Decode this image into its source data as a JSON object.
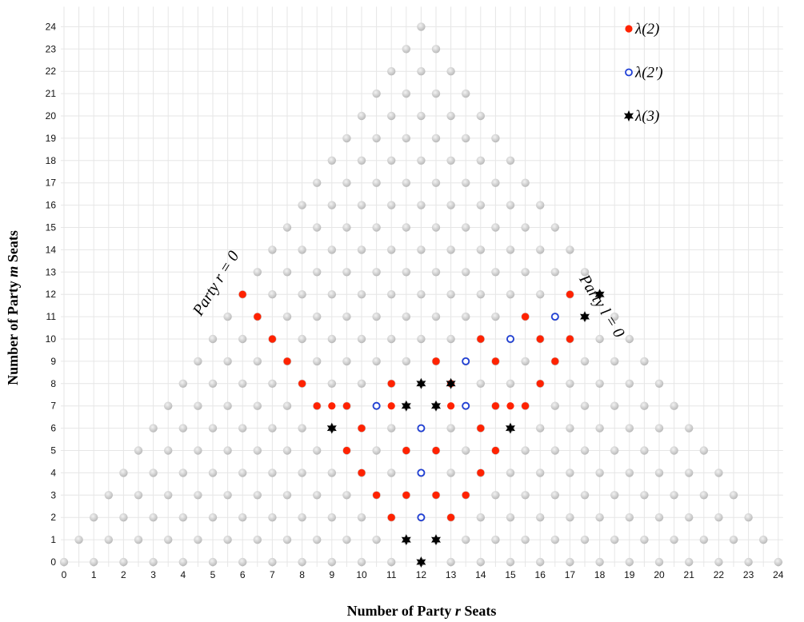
{
  "chart_data": {
    "type": "scatter",
    "xlabel": "Number of Party r Seats",
    "ylabel": "Number of Party m Seats",
    "xlabel_parts": [
      "Number of Party ",
      "r",
      " Seats"
    ],
    "ylabel_parts": [
      "Number of Party ",
      "m",
      " Seats"
    ],
    "xlim": [
      0,
      24
    ],
    "ylim": [
      0,
      24
    ],
    "x_ticks": [
      0,
      1,
      2,
      3,
      4,
      5,
      6,
      7,
      8,
      9,
      10,
      11,
      12,
      13,
      14,
      15,
      16,
      17,
      18,
      19,
      20,
      21,
      22,
      23,
      24
    ],
    "y_ticks": [
      0,
      1,
      2,
      3,
      4,
      5,
      6,
      7,
      8,
      9,
      10,
      11,
      12,
      13,
      14,
      15,
      16,
      17,
      18,
      19,
      20,
      21,
      22,
      23,
      24
    ],
    "grid": true,
    "legend_position": "top-right",
    "background": {
      "description_rule": "all points with integer m from 0 to 24 and x = r + m/2 for integer r >= 0, r + m <= 24",
      "color": "#cccccc"
    },
    "series": [
      {
        "name": "λ(2)",
        "marker": "filled-circle",
        "color": "#ff2200",
        "points": [
          [
            12,
            2
          ],
          [
            13,
            2
          ],
          [
            11,
            2
          ],
          [
            10.5,
            3
          ],
          [
            13.5,
            3
          ],
          [
            11.5,
            3
          ],
          [
            12.5,
            3
          ],
          [
            10,
            4
          ],
          [
            14,
            4
          ],
          [
            9.5,
            5
          ],
          [
            14.5,
            5
          ],
          [
            11.5,
            5
          ],
          [
            12.5,
            5
          ],
          [
            10,
            6
          ],
          [
            14,
            6
          ],
          [
            9,
            7
          ],
          [
            15,
            7
          ],
          [
            11,
            8
          ],
          [
            13,
            8
          ],
          [
            8.5,
            7
          ],
          [
            15.5,
            7
          ],
          [
            8,
            8
          ],
          [
            16,
            8
          ],
          [
            7.5,
            9
          ],
          [
            16.5,
            9
          ],
          [
            7,
            10
          ],
          [
            17,
            10
          ],
          [
            6.5,
            11
          ],
          [
            15.5,
            11
          ],
          [
            6,
            12
          ],
          [
            17,
            12
          ],
          [
            12.5,
            9
          ],
          [
            14.5,
            9
          ],
          [
            14,
            10
          ],
          [
            16,
            10
          ],
          [
            14.5,
            7
          ],
          [
            13,
            7
          ],
          [
            11,
            7
          ],
          [
            9.5,
            7
          ],
          [
            12.5,
            9
          ]
        ]
      },
      {
        "name": "λ(2′)",
        "marker": "open-circle",
        "color": "#1f3fd6",
        "points": [
          [
            12,
            2
          ],
          [
            12,
            4
          ],
          [
            12,
            6
          ],
          [
            10.5,
            7
          ],
          [
            13.5,
            7
          ],
          [
            13.5,
            9
          ],
          [
            15,
            10
          ],
          [
            16.5,
            11
          ]
        ]
      },
      {
        "name": "λ(3)",
        "marker": "star",
        "color": "#000000",
        "points": [
          [
            12,
            0
          ],
          [
            11.5,
            1
          ],
          [
            12.5,
            1
          ],
          [
            9,
            6
          ],
          [
            15,
            6
          ],
          [
            11.5,
            7
          ],
          [
            12.5,
            7
          ],
          [
            12,
            8
          ],
          [
            13,
            8
          ],
          [
            17.5,
            11
          ],
          [
            18,
            12
          ]
        ]
      }
    ],
    "annotations": [
      {
        "text": "Party r = 0",
        "x": 4.6,
        "y": 11.0,
        "rotation": -58
      },
      {
        "text": "Party l = 0",
        "x": 17.3,
        "y": 12.7,
        "rotation": 58
      }
    ]
  }
}
